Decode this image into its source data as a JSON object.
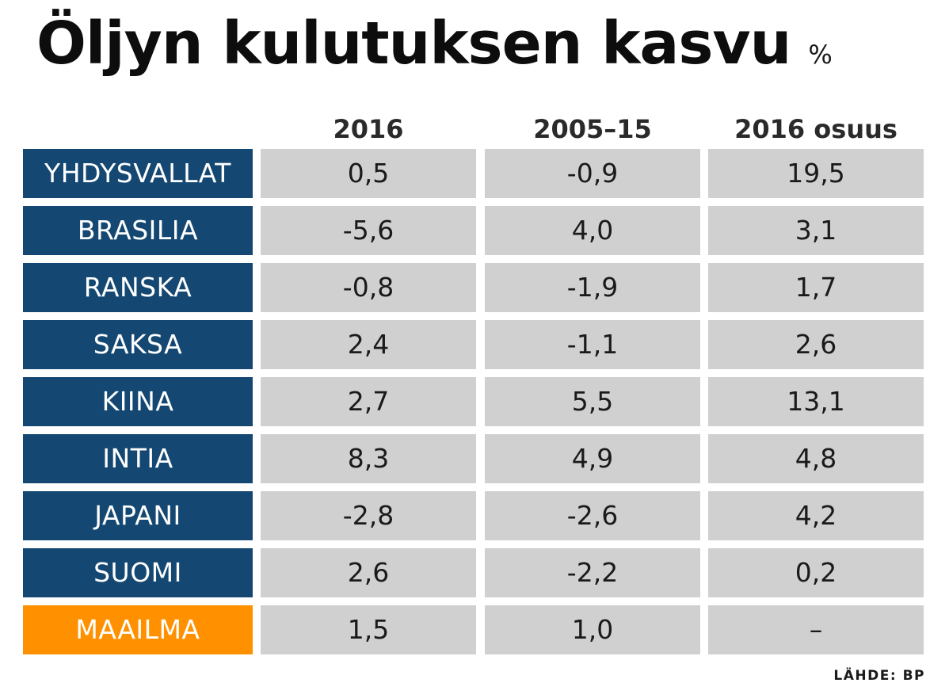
{
  "title": "Öljyn kulutuksen kasvu",
  "unit": "%",
  "source": "LÄHDE: BP",
  "colors": {
    "country_bg": "#144872",
    "world_bg": "#ff9100",
    "cell_bg": "#d0d0d0"
  },
  "chart_data": {
    "type": "table",
    "title": "Öljyn kulutuksen kasvu",
    "unit": "%",
    "columns": [
      "2016",
      "2005–15",
      "2016 osuus"
    ],
    "rows": [
      {
        "label": "YHDYSVALLAT",
        "values": [
          "0,5",
          "-0,9",
          "19,5"
        ]
      },
      {
        "label": "BRASILIA",
        "values": [
          "-5,6",
          "4,0",
          "3,1"
        ]
      },
      {
        "label": "RANSKA",
        "values": [
          "-0,8",
          "-1,9",
          "1,7"
        ]
      },
      {
        "label": "SAKSA",
        "values": [
          "2,4",
          "-1,1",
          "2,6"
        ]
      },
      {
        "label": "KIINA",
        "values": [
          "2,7",
          "5,5",
          "13,1"
        ]
      },
      {
        "label": "INTIA",
        "values": [
          "8,3",
          "4,9",
          "4,8"
        ]
      },
      {
        "label": "JAPANI",
        "values": [
          "-2,8",
          "-2,6",
          "4,2"
        ]
      },
      {
        "label": "SUOMI",
        "values": [
          "2,6",
          "-2,2",
          "0,2"
        ]
      },
      {
        "label": "MAAILMA",
        "values": [
          "1,5",
          "1,0",
          "–"
        ],
        "highlight": true
      }
    ]
  }
}
